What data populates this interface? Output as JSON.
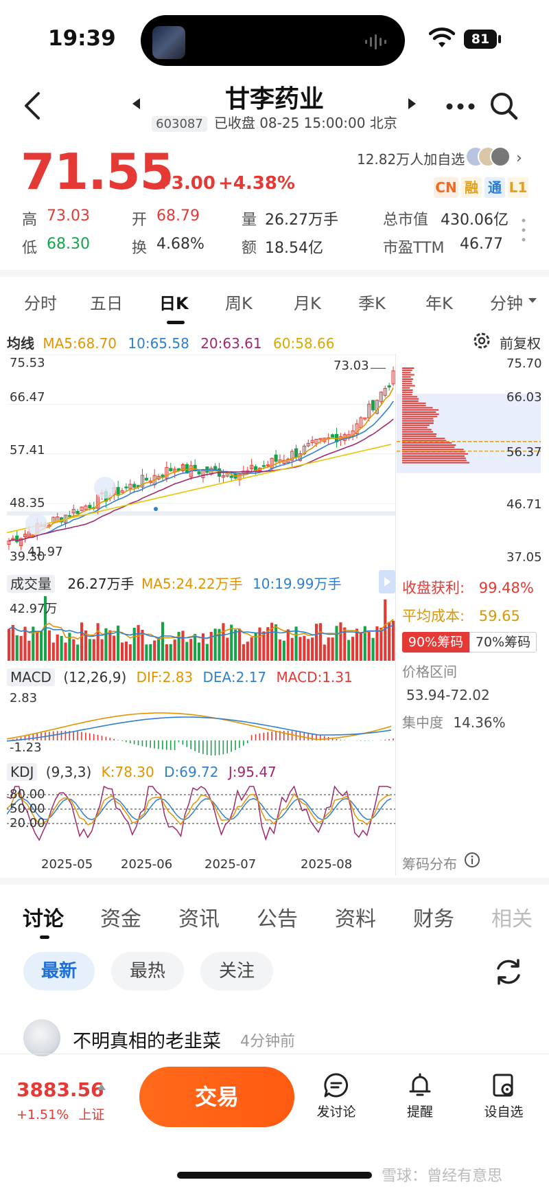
{
  "status_bar": {
    "time": "19:39",
    "battery": "81"
  },
  "header": {
    "stock_name": "甘李药业",
    "stock_code": "603087",
    "status": "已收盘 08-25 15:00:00 北京"
  },
  "quote": {
    "price": "71.55",
    "change": "+3.00",
    "change_pct": "+4.38%",
    "watchers": "12.82万人加自选",
    "badges": [
      "CN",
      "融",
      "通",
      "L1"
    ],
    "stats": {
      "high_label": "高",
      "high": "73.03",
      "open_label": "开",
      "open": "68.79",
      "volume_label": "量",
      "volume": "26.27万手",
      "mktcap_label": "总市值",
      "mktcap": "430.06亿",
      "low_label": "低",
      "low": "68.30",
      "turnover_label": "换",
      "turnover": "4.68%",
      "amount_label": "额",
      "amount": "18.54亿",
      "pe_label": "市盈TTM",
      "pe": "46.77"
    }
  },
  "period_tabs": [
    "分时",
    "五日",
    "日K",
    "周K",
    "月K",
    "季K",
    "年K",
    "分钟"
  ],
  "active_period": "日K",
  "ma_legend": {
    "label": "均线",
    "ma5": "MA5:68.70",
    "ma10": "10:65.58",
    "ma20": "20:63.61",
    "ma60": "60:58.66",
    "adjust": "前复权"
  },
  "colors": {
    "up": "#e53935",
    "down": "#17a34a",
    "ma5": "#e29400",
    "ma10": "#2f7fd0",
    "ma20": "#a0286e",
    "ma60": "#e8c400",
    "accent": "#ff5a12"
  },
  "chart_data": {
    "type": "candlestick",
    "price_axis_left": [
      "75.53",
      "66.47",
      "57.41",
      "48.35",
      "39.30"
    ],
    "price_axis_right": [
      "75.70",
      "66.03",
      "56.37",
      "46.71",
      "37.05"
    ],
    "ylim": [
      37.05,
      75.7
    ],
    "max_marker": "73.03",
    "min_marker": "41.97",
    "x_ticks": [
      "2025-05",
      "2025-06",
      "2025-07",
      "2025-08"
    ],
    "volume_pane": {
      "label": "成交量",
      "value": "26.27万手",
      "ma5": "MA5:24.22万手",
      "ma10": "10:19.99万手",
      "max_tick": "42.97万"
    },
    "macd_pane": {
      "label": "MACD",
      "params": "(12,26,9)",
      "dif": "DIF:2.83",
      "dea": "DEA:2.17",
      "macd": "MACD:1.31",
      "top_tick": "2.83",
      "bottom_tick": "-1.23"
    },
    "kdj_pane": {
      "label": "KDJ",
      "params": "(9,3,3)",
      "k": "K:78.30",
      "d": "D:69.72",
      "j": "J:95.47",
      "ticks": [
        "80.00",
        "50.00",
        "20.00"
      ]
    }
  },
  "chip_panel": {
    "profit_label": "收盘获利:",
    "profit": "99.48%",
    "cost_label": "平均成本:",
    "cost": "59.65",
    "btn_90": "90%筹码",
    "btn_70": "70%筹码",
    "range_label": "价格区间",
    "range": "53.94-72.02",
    "concentration_label": "集中度",
    "concentration": "14.36%",
    "dist_label": "筹码分布"
  },
  "discussion": {
    "tabs": [
      "讨论",
      "资金",
      "资讯",
      "公告",
      "资料",
      "财务",
      "相关"
    ],
    "filters": [
      "最新",
      "最热",
      "关注"
    ],
    "post": {
      "author": "不明真相的老韭菜",
      "time": "4分钟前"
    }
  },
  "bottom_bar": {
    "index_value": "3883.56",
    "index_change": "+1.51%",
    "index_name": "上证",
    "trade": "交易",
    "discuss": "发讨论",
    "alert": "提醒",
    "watchlist": "设自选"
  },
  "watermark": "雪球：曾经有意思"
}
